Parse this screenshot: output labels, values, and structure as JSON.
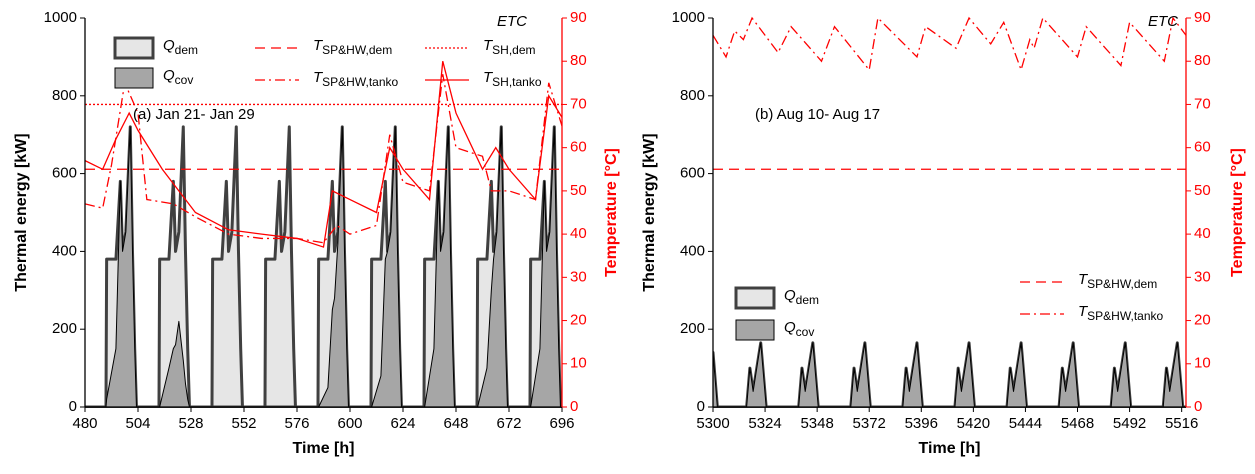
{
  "chart_data": [
    {
      "type": "area-line",
      "annotations": [
        "ETC",
        "(a) Jan 21- Jan 29"
      ],
      "xlabel": "Time [h]",
      "ylabel": "Thermal energy [kW]",
      "y2label": "Temperature [°C]",
      "y2color": "#ff0000",
      "xlim": [
        480,
        696
      ],
      "xticks": [
        480,
        504,
        528,
        552,
        576,
        600,
        624,
        648,
        672,
        696
      ],
      "ylim": [
        0,
        1000
      ],
      "yticks": [
        0,
        200,
        400,
        600,
        800,
        1000
      ],
      "y2lim": [
        0,
        90
      ],
      "y2ticks": [
        0,
        10,
        20,
        30,
        40,
        50,
        60,
        70,
        80,
        90
      ],
      "series": [
        {
          "name": "Q",
          "subscript": "dem",
          "kind": "area",
          "color": "#e6e6e6",
          "edge_color": "#404040",
          "edge_width": 3,
          "x": [
            480,
            489.5,
            489.8,
            494,
            496,
            497,
            498.5,
            500.5,
            501.5,
            502.5,
            503.3,
            513.5,
            513.8,
            518,
            520,
            521,
            522.5,
            524.5,
            525.5,
            526.5,
            527.3,
            537.5,
            537.8,
            542,
            544,
            545,
            546.5,
            548.5,
            549.5,
            550.5,
            551.3,
            561.5,
            561.8,
            566,
            568,
            569,
            570.5,
            572.5,
            573.5,
            574.5,
            575.3,
            585.5,
            585.8,
            590,
            592,
            593,
            594.5,
            596.5,
            597.5,
            598.5,
            599.3,
            609.5,
            609.8,
            614,
            616,
            617,
            618.5,
            620.5,
            621.5,
            622.5,
            623.3,
            633.5,
            633.8,
            638,
            640,
            641,
            642.5,
            644.5,
            645.5,
            646.5,
            647.3,
            657.5,
            657.8,
            662,
            664,
            665,
            666.5,
            668.5,
            669.5,
            670.5,
            671.3,
            681.5,
            681.8,
            686,
            688,
            689,
            690.5,
            692.5,
            693.5,
            694.5,
            695.3,
            696
          ],
          "values": [
            0,
            0,
            380,
            380,
            580,
            400,
            450,
            720,
            400,
            150,
            0,
            0,
            380,
            380,
            580,
            400,
            450,
            720,
            400,
            150,
            0,
            0,
            380,
            380,
            580,
            400,
            450,
            720,
            400,
            150,
            0,
            0,
            380,
            380,
            580,
            400,
            450,
            720,
            400,
            150,
            0,
            0,
            380,
            380,
            580,
            400,
            450,
            720,
            400,
            150,
            0,
            0,
            380,
            380,
            580,
            400,
            450,
            720,
            400,
            150,
            0,
            0,
            380,
            380,
            580,
            400,
            450,
            720,
            400,
            150,
            0,
            0,
            380,
            380,
            580,
            400,
            450,
            720,
            400,
            150,
            0,
            0,
            380,
            380,
            580,
            400,
            450,
            720,
            400,
            150,
            0,
            0
          ]
        },
        {
          "name": "Q",
          "subscript": "cov",
          "kind": "area",
          "color": "#a6a6a6",
          "edge_color": "#000000",
          "edge_width": 1,
          "x": [
            480,
            489.5,
            489.8,
            494,
            496,
            497,
            498.5,
            500.5,
            501.5,
            502.5,
            503.3,
            513.5,
            513.8,
            518,
            520,
            521,
            522.5,
            524.5,
            525.5,
            526.5,
            527.3,
            537.5,
            537.8,
            542,
            544,
            545,
            546.5,
            548.5,
            549.5,
            550.5,
            551.3,
            561.5,
            561.8,
            566,
            568,
            569,
            570.5,
            572.5,
            573.5,
            574.5,
            575.3,
            585.5,
            585.8,
            590,
            592,
            593,
            594.5,
            596.5,
            597.5,
            598.5,
            599.3,
            609.5,
            609.8,
            614,
            616,
            617,
            618.5,
            620.5,
            621.5,
            622.5,
            623.3,
            633.5,
            633.8,
            638,
            640,
            641,
            642.5,
            644.5,
            645.5,
            646.5,
            647.3,
            657.5,
            657.8,
            662,
            664,
            665,
            666.5,
            668.5,
            669.5,
            670.5,
            671.3,
            681.5,
            681.8,
            686,
            688,
            689,
            690.5,
            692.5,
            693.5,
            694.5,
            695.3,
            696
          ],
          "values": [
            0,
            0,
            20,
            150,
            580,
            400,
            450,
            720,
            400,
            150,
            0,
            0,
            0,
            100,
            150,
            160,
            220,
            120,
            60,
            20,
            0,
            0,
            0,
            0,
            0,
            0,
            0,
            0,
            0,
            0,
            0,
            0,
            0,
            0,
            0,
            0,
            0,
            0,
            0,
            0,
            0,
            0,
            0,
            50,
            250,
            280,
            420,
            720,
            400,
            150,
            0,
            0,
            0,
            80,
            380,
            400,
            450,
            720,
            400,
            150,
            0,
            0,
            0,
            150,
            580,
            400,
            450,
            720,
            400,
            150,
            0,
            0,
            0,
            100,
            300,
            380,
            450,
            720,
            400,
            150,
            0,
            0,
            0,
            150,
            580,
            400,
            450,
            720,
            400,
            150,
            0,
            0
          ]
        },
        {
          "name": "T",
          "subscript": "SP&HW,dem",
          "kind": "line",
          "dash": "dashed",
          "axis": "y2",
          "color": "#ff0000",
          "x": [
            480,
            696
          ],
          "values": [
            55,
            55
          ]
        },
        {
          "name": "T",
          "subscript": "SP&HW,tanko",
          "kind": "line",
          "dash": "dashdot",
          "axis": "y2",
          "color": "#ff0000",
          "x": [
            480,
            488,
            492,
            498,
            504,
            508,
            520,
            530,
            545,
            560,
            576,
            588,
            594,
            600,
            612,
            618,
            624,
            636,
            642,
            648,
            660,
            664,
            672,
            684,
            690,
            696
          ],
          "values": [
            47,
            46,
            56,
            75,
            68,
            48,
            47,
            44,
            40,
            39,
            39,
            38,
            42,
            40,
            42,
            63,
            52,
            50,
            77,
            60,
            58,
            50,
            50,
            48,
            75,
            65
          ]
        },
        {
          "name": "T",
          "subscript": "SH,dem",
          "kind": "line",
          "dash": "dotted",
          "axis": "y2",
          "color": "#ff0000",
          "x": [
            480,
            696
          ],
          "values": [
            70,
            70
          ]
        },
        {
          "name": "T",
          "subscript": "SH,tanko",
          "kind": "line",
          "dash": "solid",
          "axis": "y2",
          "color": "#ff0000",
          "x": [
            480,
            488,
            494,
            500,
            504,
            515,
            530,
            545,
            560,
            576,
            588,
            592,
            600,
            612,
            618,
            624,
            636,
            642,
            648,
            660,
            666,
            672,
            684,
            690,
            696
          ],
          "values": [
            57,
            55,
            62,
            68,
            64,
            55,
            45,
            41,
            40,
            39,
            37,
            50,
            48,
            45,
            60,
            55,
            48,
            80,
            68,
            55,
            60,
            55,
            48,
            72,
            67
          ]
        }
      ]
    },
    {
      "type": "area-line",
      "annotations": [
        "ETC",
        "(b) Aug 10- Aug 17"
      ],
      "xlabel": "Time [h]",
      "ylabel": "Thermal energy [kW]",
      "y2label": "Temperature [°C]",
      "y2color": "#ff0000",
      "xlim": [
        5300,
        5518
      ],
      "xticks": [
        5300,
        5324,
        5348,
        5372,
        5396,
        5420,
        5444,
        5468,
        5492,
        5516
      ],
      "ylim": [
        0,
        1000
      ],
      "yticks": [
        0,
        200,
        400,
        600,
        800,
        1000
      ],
      "y2lim": [
        0,
        90
      ],
      "y2ticks": [
        0,
        10,
        20,
        30,
        40,
        50,
        60,
        70,
        80,
        90
      ],
      "series": [
        {
          "name": "Q",
          "subscript": "dem",
          "kind": "area",
          "color": "#e6e6e6",
          "edge_color": "#404040",
          "edge_width": 3,
          "x": [
            5300,
            5302,
            5315.5,
            5317,
            5318.5,
            5322,
            5324.5,
            5339.5,
            5341,
            5342.5,
            5346,
            5348.5,
            5363.5,
            5365,
            5366.5,
            5370,
            5372.5,
            5387.5,
            5389,
            5390.5,
            5394,
            5396.5,
            5411.5,
            5413,
            5414.5,
            5418,
            5420.5,
            5435.5,
            5437,
            5438.5,
            5442,
            5444.5,
            5459.5,
            5461,
            5462.5,
            5466,
            5468.5,
            5483.5,
            5485,
            5486.5,
            5490,
            5492.5,
            5507.5,
            5509,
            5510.5,
            5514,
            5516.5,
            5518
          ],
          "values": [
            140,
            0,
            0,
            100,
            40,
            165,
            0,
            0,
            100,
            40,
            165,
            0,
            0,
            100,
            40,
            165,
            0,
            0,
            100,
            40,
            165,
            0,
            0,
            100,
            40,
            165,
            0,
            0,
            100,
            40,
            165,
            0,
            0,
            100,
            40,
            165,
            0,
            0,
            100,
            40,
            165,
            0,
            0,
            100,
            40,
            165,
            0,
            0
          ]
        },
        {
          "name": "Q",
          "subscript": "cov",
          "kind": "area",
          "color": "#a6a6a6",
          "edge_color": "#000000",
          "edge_width": 1,
          "x": [
            5300,
            5302,
            5315.5,
            5317,
            5318.5,
            5322,
            5324.5,
            5339.5,
            5341,
            5342.5,
            5346,
            5348.5,
            5363.5,
            5365,
            5366.5,
            5370,
            5372.5,
            5387.5,
            5389,
            5390.5,
            5394,
            5396.5,
            5411.5,
            5413,
            5414.5,
            5418,
            5420.5,
            5435.5,
            5437,
            5438.5,
            5442,
            5444.5,
            5459.5,
            5461,
            5462.5,
            5466,
            5468.5,
            5483.5,
            5485,
            5486.5,
            5490,
            5492.5,
            5507.5,
            5509,
            5510.5,
            5514,
            5516.5,
            5518
          ],
          "values": [
            140,
            0,
            0,
            100,
            40,
            165,
            0,
            0,
            100,
            40,
            165,
            0,
            0,
            100,
            40,
            165,
            0,
            0,
            100,
            40,
            165,
            0,
            0,
            100,
            40,
            165,
            0,
            0,
            100,
            40,
            165,
            0,
            0,
            100,
            40,
            165,
            0,
            0,
            100,
            40,
            165,
            0,
            0,
            100,
            40,
            165,
            0,
            0
          ]
        },
        {
          "name": "T",
          "subscript": "SP&HW,dem",
          "kind": "line",
          "dash": "dashed",
          "axis": "y2",
          "color": "#ff0000",
          "x": [
            5300,
            5518
          ],
          "values": [
            55,
            55
          ]
        },
        {
          "name": "T",
          "subscript": "SP&HW,tanko",
          "kind": "line",
          "dash": "dashdot",
          "axis": "y2",
          "color": "#ff0000",
          "x": [
            5300,
            5306,
            5310,
            5314,
            5318,
            5330,
            5336,
            5350,
            5356,
            5372,
            5376,
            5394,
            5398,
            5412,
            5418,
            5428,
            5434,
            5442,
            5446,
            5448,
            5452,
            5468,
            5472,
            5488,
            5492,
            5508,
            5512,
            5518
          ],
          "values": [
            86,
            81,
            87,
            85,
            90,
            82,
            88,
            80,
            88,
            78,
            90,
            81,
            88,
            83,
            90,
            84,
            89,
            78,
            85,
            83,
            90,
            81,
            88,
            79,
            89,
            80,
            90,
            86
          ]
        }
      ]
    }
  ]
}
